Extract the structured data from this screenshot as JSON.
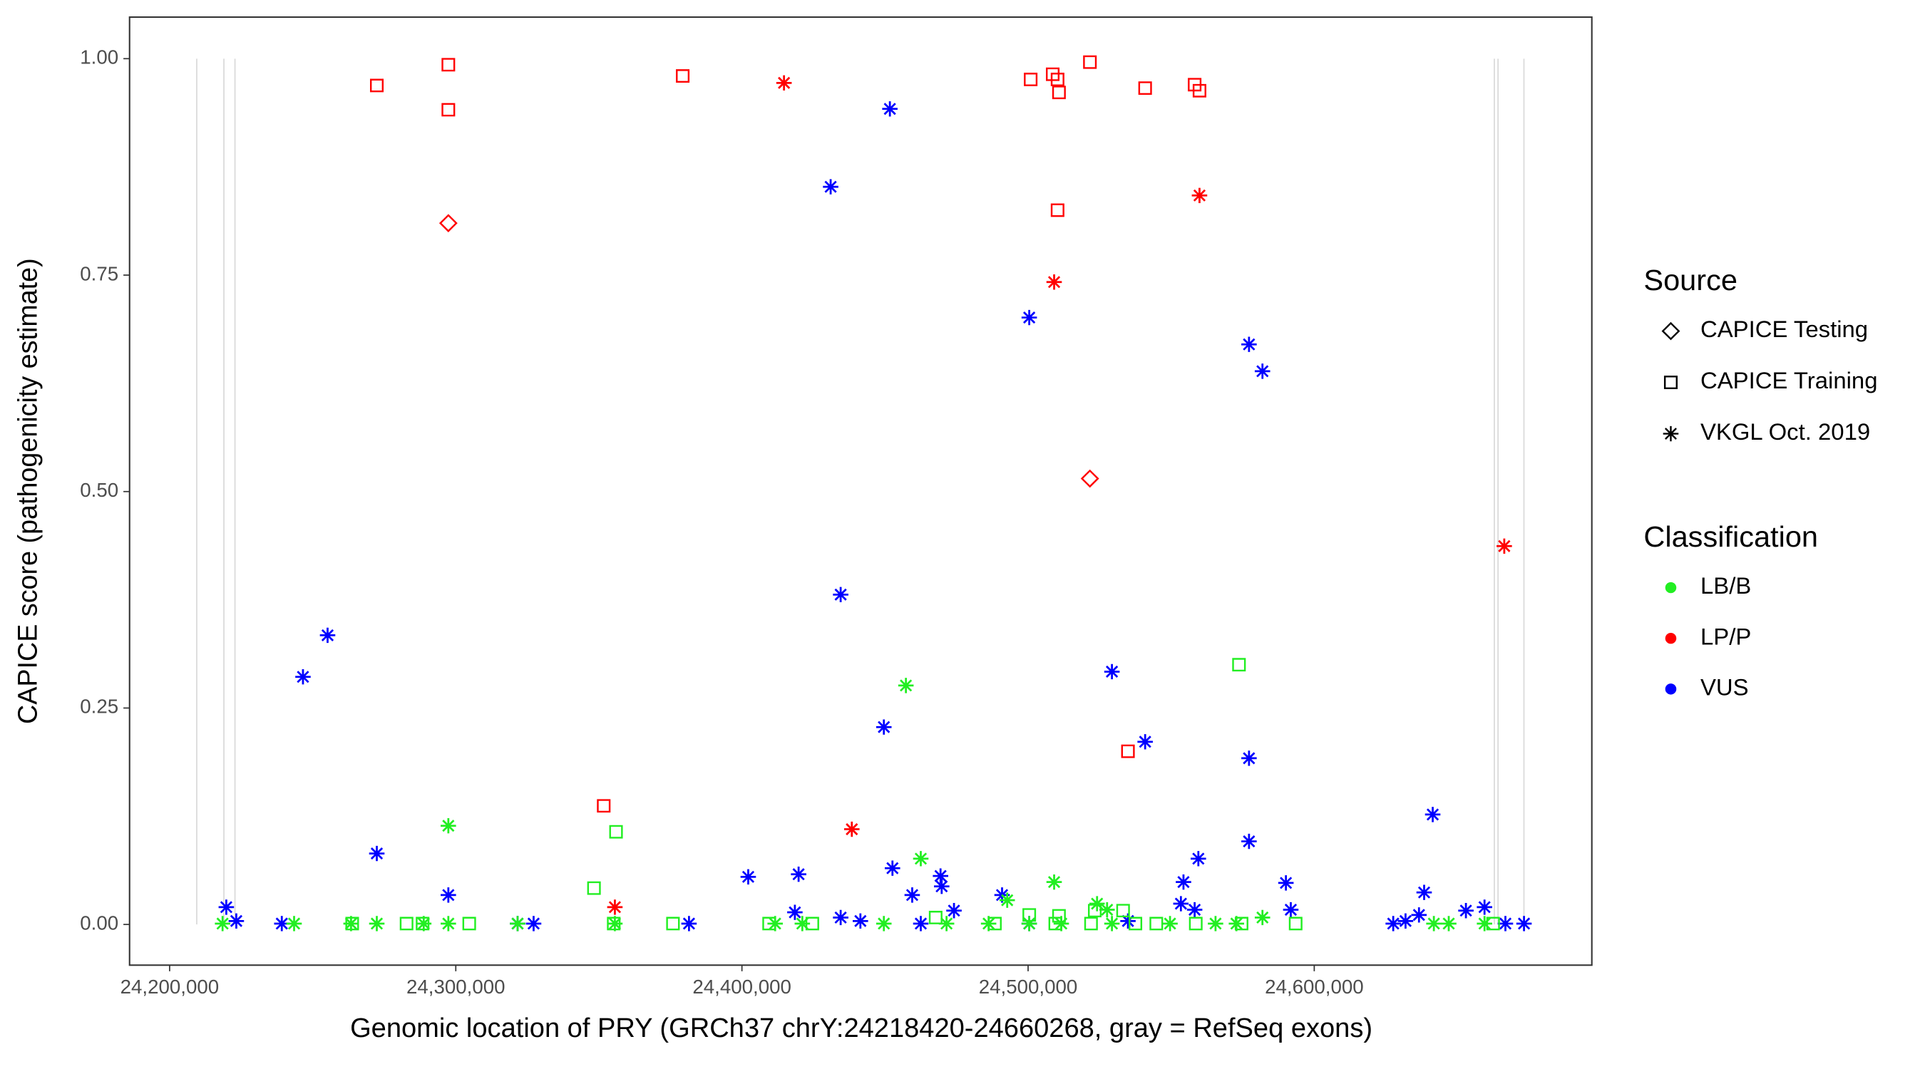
{
  "chart_data": {
    "type": "scatter",
    "x_label": "Genomic location of PRY (GRCh37 chrY:24218420-24660268, gray = RefSeq exons)",
    "y_label": "CAPICE score (pathogenicity estimate)",
    "xlim": [
      24186000,
      24697000
    ],
    "ylim": [
      -0.047,
      1.048
    ],
    "xticks": [
      {
        "value": 24200000,
        "label": "24,200,000"
      },
      {
        "value": 24300000,
        "label": "24,300,000"
      },
      {
        "value": 24400000,
        "label": "24,400,000"
      },
      {
        "value": 24500000,
        "label": "24,500,000"
      },
      {
        "value": 24600000,
        "label": "24,600,000"
      }
    ],
    "yticks": [
      {
        "value": 0,
        "label": "0.00"
      },
      {
        "value": 0.25,
        "label": "0.25"
      },
      {
        "value": 0.5,
        "label": "0.50"
      },
      {
        "value": 0.75,
        "label": "0.75"
      },
      {
        "value": 1,
        "label": "1.00"
      }
    ],
    "grid": false,
    "exons": [
      24209480,
      24218970,
      24222840,
      24662930,
      24664220,
      24673280
    ],
    "exon_color": "#d9d9d9",
    "legend": {
      "source": {
        "title": "Source",
        "items": [
          {
            "name": "CAPICE Testing",
            "shape": "diamond"
          },
          {
            "name": "CAPICE Training",
            "shape": "square"
          },
          {
            "name": "VKGL Oct. 2019",
            "shape": "asterisk"
          }
        ]
      },
      "classification": {
        "title": "Classification",
        "items": [
          {
            "name": "LB/B",
            "color": "#22ee22"
          },
          {
            "name": "LP/P",
            "color": "#ff0000"
          },
          {
            "name": "VUS",
            "color": "#0000ff"
          }
        ]
      }
    },
    "series": [
      {
        "shape": "square",
        "color": "#ff0000",
        "x": [
          24272400,
          24297400,
          24297400,
          24379300,
          24500900,
          24508600,
          24510300,
          24510800,
          24521600,
          24540900,
          24558200,
          24559900,
          24510300,
          24534900,
          24351700
        ],
        "values": [
          0.969,
          0.993,
          0.941,
          0.98,
          0.976,
          0.982,
          0.976,
          0.961,
          0.996,
          0.966,
          0.97,
          0.963,
          0.825,
          0.2,
          0.137
        ]
      },
      {
        "shape": "diamond",
        "color": "#ff0000",
        "x": [
          24297400,
          24521600
        ],
        "values": [
          0.81,
          0.515
        ]
      },
      {
        "shape": "asterisk",
        "color": "#ff0000",
        "x": [
          24414700,
          24559900,
          24509100,
          24666400,
          24438400,
          24355600
        ],
        "values": [
          0.972,
          0.842,
          0.742,
          0.437,
          0.11,
          0.02
        ]
      },
      {
        "shape": "asterisk",
        "color": "#0000ff",
        "x": [
          24451700,
          24431000,
          24500400,
          24577200,
          24581900,
          24434500,
          24255200,
          24246600,
          24529300,
          24449600,
          24540900,
          24577200,
          24577200,
          24272400,
          24297400,
          24641400,
          24402200,
          24419800,
          24452600,
          24469400,
          24559500,
          24554300,
          24590100,
          24459500,
          24490900,
          24638400,
          24469800,
          24553400,
          24591800,
          24558200,
          24418500,
          24434500,
          24474100,
          24653000,
          24659500,
          24636600,
          24219800,
          24223300,
          24239200,
          24321600,
          24327200,
          24381500,
          24441400,
          24462500,
          24500400,
          24534900,
          24627600,
          24631900,
          24666800,
          24673300
        ],
        "values": [
          0.942,
          0.852,
          0.701,
          0.67,
          0.639,
          0.381,
          0.334,
          0.286,
          0.292,
          0.228,
          0.211,
          0.192,
          0.096,
          0.082,
          0.034,
          0.127,
          0.055,
          0.058,
          0.065,
          0.056,
          0.076,
          0.049,
          0.048,
          0.034,
          0.034,
          0.037,
          0.044,
          0.024,
          0.017,
          0.017,
          0.014,
          0.008,
          0.016,
          0.016,
          0.02,
          0.011,
          0.02,
          0.004,
          0.001,
          0.001,
          0.001,
          0.001,
          0.004,
          0.001,
          0.001,
          0.004,
          0.001,
          0.004,
          0.001,
          0.001
        ]
      },
      {
        "shape": "asterisk",
        "color": "#22ee22",
        "x": [
          24297400,
          24457300,
          24462500,
          24509100,
          24492700,
          24524100,
          24527600,
          24581900,
          24218500,
          24243500,
          24263400,
          24272400,
          24288800,
          24297400,
          24321600,
          24355600,
          24411600,
          24421100,
          24449600,
          24471500,
          24486200,
          24500400,
          24511600,
          24529300,
          24549600,
          24565500,
          24572800,
          24641800,
          24647000,
          24659500
        ],
        "values": [
          0.114,
          0.276,
          0.076,
          0.049,
          0.028,
          0.024,
          0.017,
          0.008,
          0.001,
          0.001,
          0.001,
          0.001,
          0.001,
          0.001,
          0.001,
          0.001,
          0.001,
          0.001,
          0.001,
          0.001,
          0.001,
          0.001,
          0.001,
          0.001,
          0.001,
          0.001,
          0.001,
          0.001,
          0.001,
          0.001
        ]
      },
      {
        "shape": "square",
        "color": "#22ee22",
        "x": [
          24573700,
          24356000,
          24348300,
          24467700,
          24500400,
          24510800,
          24533200,
          24523300,
          24263800,
          24282800,
          24288400,
          24304700,
          24355200,
          24375900,
          24409500,
          24424600,
          24488400,
          24509500,
          24522000,
          24537500,
          24544800,
          24558600,
          24574600,
          24593500,
          24662500
        ],
        "values": [
          0.3,
          0.107,
          0.042,
          0.008,
          0.011,
          0.01,
          0.016,
          0.016,
          0.001,
          0.001,
          0.001,
          0.001,
          0.001,
          0.001,
          0.001,
          0.001,
          0.001,
          0.001,
          0.001,
          0.001,
          0.001,
          0.001,
          0.001,
          0.001,
          0.001
        ]
      }
    ]
  }
}
